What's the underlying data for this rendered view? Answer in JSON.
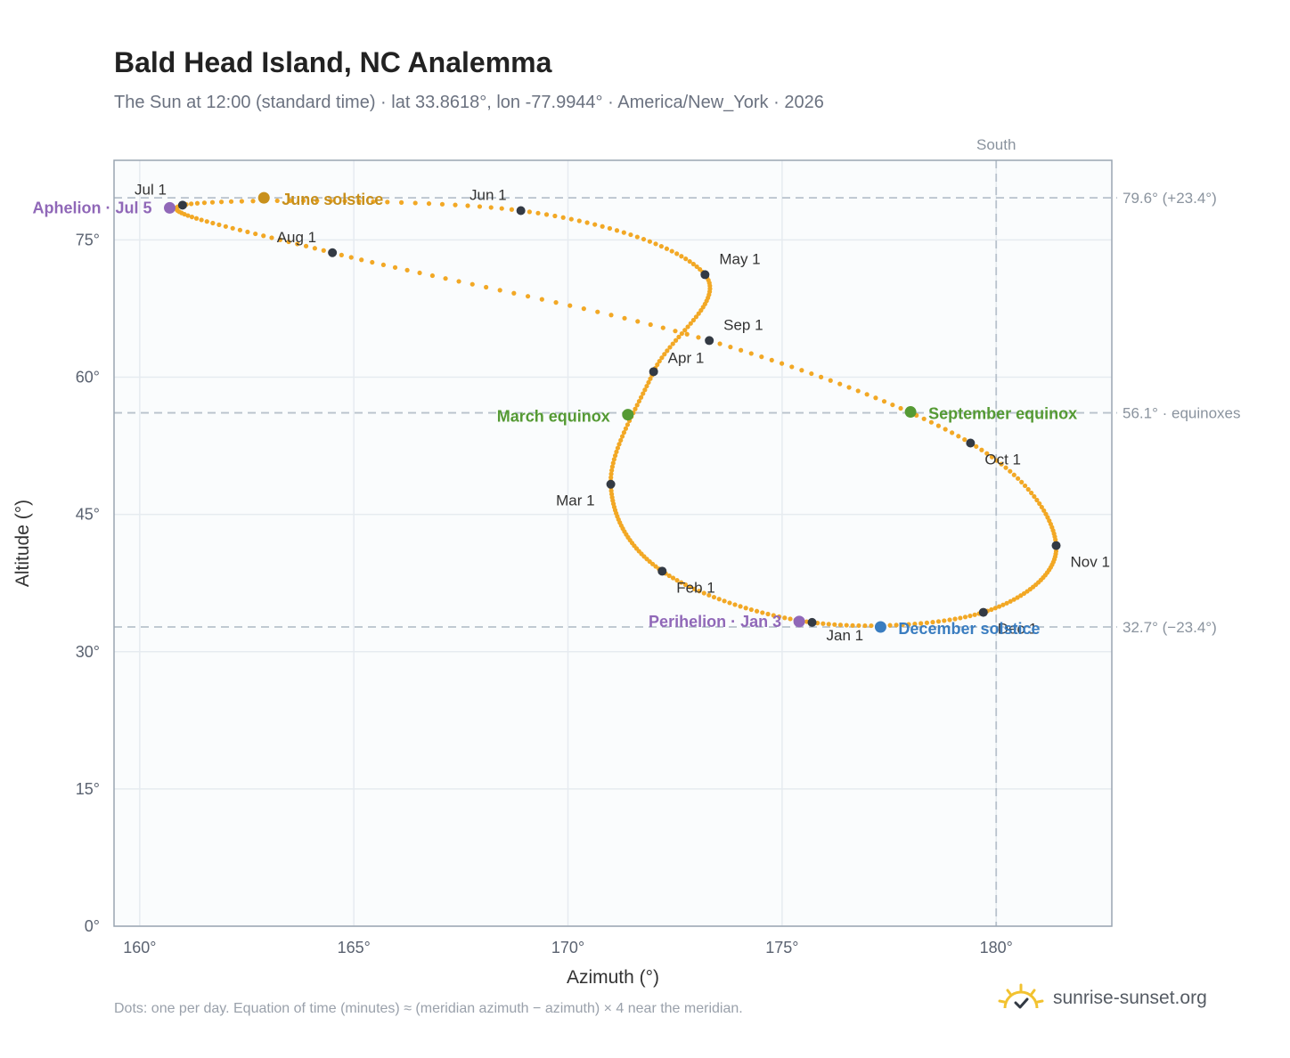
{
  "title": "Bald Head Island, NC Analemma",
  "subtitle": "The Sun at 12:00 (standard time) · lat 33.8618°, lon -77.9944° · America/New_York · 2026",
  "footnote": "Dots: one per day. Equation of time (minutes) ≈ (meridian azimuth − azimuth) × 4 near the meridian.",
  "brand": {
    "name": "sunrise-sunset.org",
    "icon": "sun-logo-icon"
  },
  "colors": {
    "path": "#f2a825",
    "month_marker": "#333a44",
    "june_solstice": "#c8901c",
    "december_solstice": "#3a7dc0",
    "equinox": "#559a34",
    "apsis": "#9068b8",
    "reference_line": "#b8c2cc",
    "plot_background": "#fafcfd",
    "grid": "#e6ebf0",
    "frame": "#9aa5b2"
  },
  "chart_data": {
    "type": "scatter",
    "xlabel": "Azimuth (°)",
    "ylabel": "Altitude (°)",
    "xlim": [
      159.4,
      182.7
    ],
    "ylim": [
      0,
      83.7
    ],
    "x_ticks": [
      "160°",
      "165°",
      "170°",
      "175°",
      "180°"
    ],
    "x_tick_values": [
      160,
      165,
      170,
      175,
      180
    ],
    "y_ticks": [
      "0°",
      "15°",
      "30°",
      "45°",
      "60°",
      "75°"
    ],
    "y_tick_values": [
      0,
      15,
      30,
      45,
      60,
      75
    ],
    "grid": true,
    "vertical_reference": {
      "x": 180,
      "label": "South"
    },
    "horizontal_references": [
      {
        "y": 79.6,
        "label": "79.6° (+23.4°)"
      },
      {
        "y": 56.1,
        "label": "56.1° · equinoxes"
      },
      {
        "y": 32.7,
        "label": "32.7° (−23.4°)"
      }
    ],
    "month_markers": [
      {
        "label": "Jan 1",
        "azimuth": 175.7,
        "altitude": 33.2
      },
      {
        "label": "Feb 1",
        "azimuth": 172.2,
        "altitude": 38.8
      },
      {
        "label": "Mar 1",
        "azimuth": 171.0,
        "altitude": 48.3
      },
      {
        "label": "Apr 1",
        "azimuth": 172.0,
        "altitude": 60.6
      },
      {
        "label": "May 1",
        "azimuth": 173.2,
        "altitude": 71.2
      },
      {
        "label": "Jun 1",
        "azimuth": 168.9,
        "altitude": 78.2
      },
      {
        "label": "Jul 1",
        "azimuth": 161.0,
        "altitude": 78.8
      },
      {
        "label": "Aug 1",
        "azimuth": 164.5,
        "altitude": 73.6
      },
      {
        "label": "Sep 1",
        "azimuth": 173.3,
        "altitude": 64.0
      },
      {
        "label": "Oct 1",
        "azimuth": 179.4,
        "altitude": 52.8
      },
      {
        "label": "Nov 1",
        "azimuth": 181.4,
        "altitude": 41.6
      },
      {
        "label": "Dec 1",
        "azimuth": 179.7,
        "altitude": 34.3
      }
    ],
    "events": [
      {
        "key": "june_solstice",
        "label": "June solstice",
        "azimuth": 162.9,
        "altitude": 79.6
      },
      {
        "key": "aphelion",
        "label": "Aphelion · Jul 5",
        "azimuth": 160.7,
        "altitude": 78.5
      },
      {
        "key": "march_equinox",
        "label": "March equinox",
        "azimuth": 171.4,
        "altitude": 55.9
      },
      {
        "key": "september_equinox",
        "label": "September equinox",
        "azimuth": 178.0,
        "altitude": 56.2
      },
      {
        "key": "perihelion",
        "label": "Perihelion · Jan 3",
        "azimuth": 175.4,
        "altitude": 33.3
      },
      {
        "key": "december_solstice",
        "label": "December solstice",
        "azimuth": 177.3,
        "altitude": 32.7
      }
    ]
  }
}
